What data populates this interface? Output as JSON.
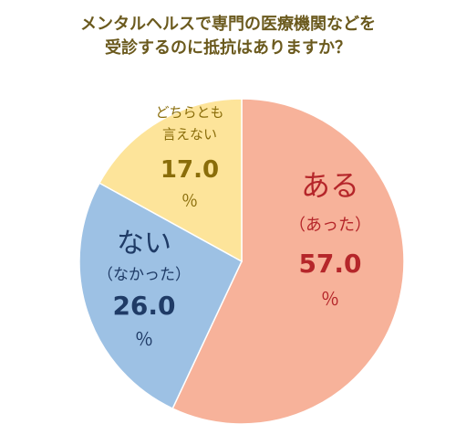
{
  "chart_data": {
    "type": "pie",
    "title_lines": [
      "メンタルヘルスで専門の医療機関などを",
      "受診するのに抵抗はありますか？"
    ],
    "slices": [
      {
        "label_lines": [
          "ある",
          "（あった）"
        ],
        "value": 57.0,
        "display_value": "57.0",
        "unit": "％",
        "color": "#f7b29a",
        "text_color": "#b5262a"
      },
      {
        "label_lines": [
          "ない",
          "（なかった）"
        ],
        "value": 26.0,
        "display_value": "26.0",
        "unit": "％",
        "color": "#9dc1e4",
        "text_color": "#1f3b66"
      },
      {
        "label_lines": [
          "どちらとも",
          "言えない"
        ],
        "value": 17.0,
        "display_value": "17.0",
        "unit": "％",
        "color": "#fde49a",
        "text_color": "#8a6d0a"
      }
    ],
    "start_angle_deg": 0,
    "direction": "clockwise",
    "legend": "none"
  }
}
